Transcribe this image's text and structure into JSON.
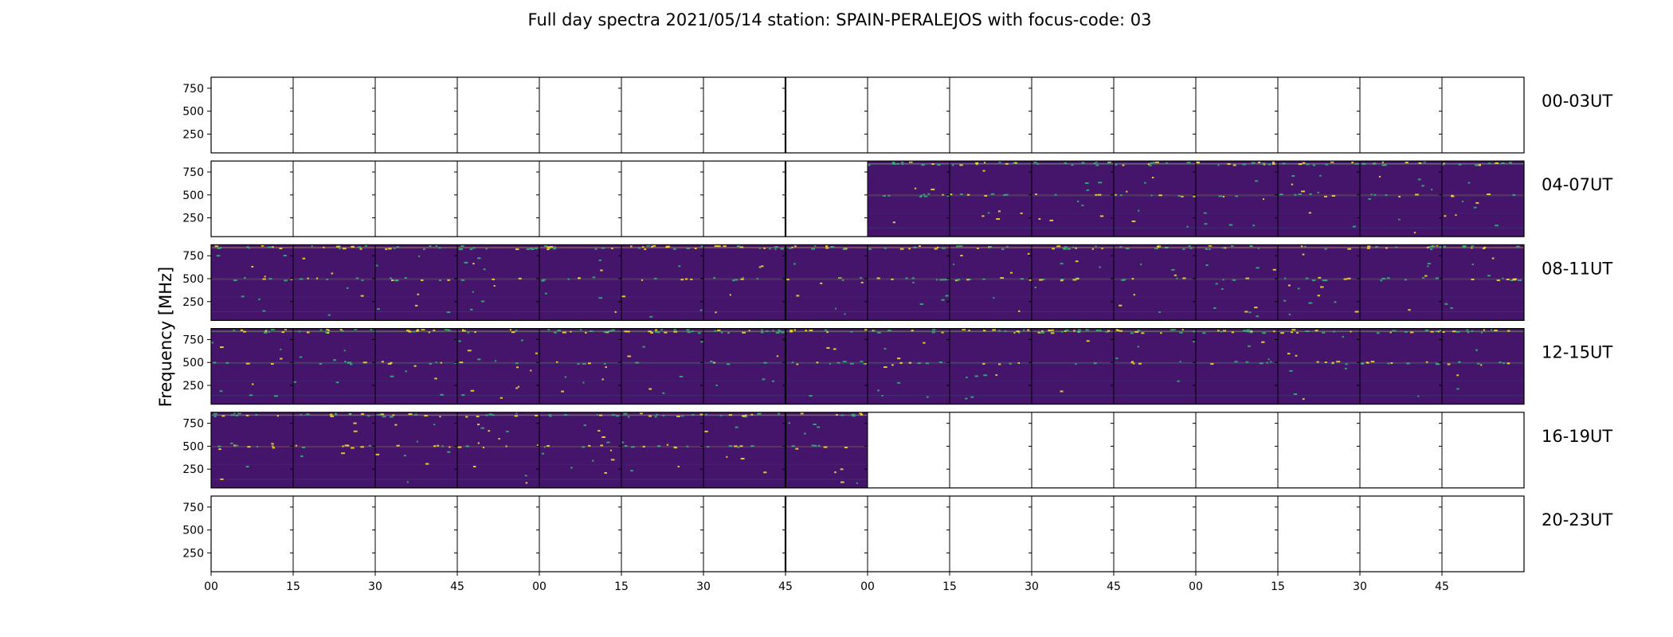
{
  "chart_data": {
    "type": "heatmap",
    "title": "Full day spectra 2021/05/14 station: SPAIN-PERALEJOS with focus-code: 03",
    "ylabel": "Frequency [MHz]",
    "xlabel": "",
    "y_ticks": [
      "750",
      "500",
      "250"
    ],
    "y_tick_values": [
      750,
      500,
      250
    ],
    "ylim": [
      45,
      870
    ],
    "x_ticks": [
      "00",
      "15",
      "30",
      "45",
      "00",
      "15",
      "30",
      "45",
      "00",
      "15",
      "30",
      "45",
      "00",
      "15",
      "30",
      "45"
    ],
    "rows": [
      {
        "label": "00-03UT",
        "has_data": [
          0,
          0,
          0,
          0,
          0,
          0,
          0,
          0,
          0,
          0,
          0,
          0,
          0,
          0,
          0,
          0
        ]
      },
      {
        "label": "04-07UT",
        "has_data": [
          0,
          0,
          0,
          0,
          0,
          0,
          0,
          0,
          1,
          1,
          1,
          1,
          1,
          1,
          1,
          1
        ]
      },
      {
        "label": "08-11UT",
        "has_data": [
          1,
          1,
          1,
          1,
          1,
          1,
          1,
          1,
          1,
          1,
          1,
          1,
          1,
          1,
          1,
          1
        ]
      },
      {
        "label": "12-15UT",
        "has_data": [
          1,
          1,
          1,
          1,
          1,
          1,
          1,
          1,
          1,
          1,
          1,
          1,
          1,
          1,
          1,
          1
        ]
      },
      {
        "label": "16-19UT",
        "has_data": [
          1,
          1,
          1,
          1,
          1,
          1,
          1,
          1,
          0,
          0,
          0,
          0,
          0,
          0,
          0,
          0
        ]
      },
      {
        "label": "20-23UT",
        "has_data": [
          0,
          0,
          0,
          0,
          0,
          0,
          0,
          0,
          0,
          0,
          0,
          0,
          0,
          0,
          0,
          0
        ]
      }
    ],
    "colormap": "viridis",
    "colors": {
      "background": "#44156b",
      "hot": "#fde725",
      "warm": "#35b779",
      "cool": "#31688e"
    }
  }
}
